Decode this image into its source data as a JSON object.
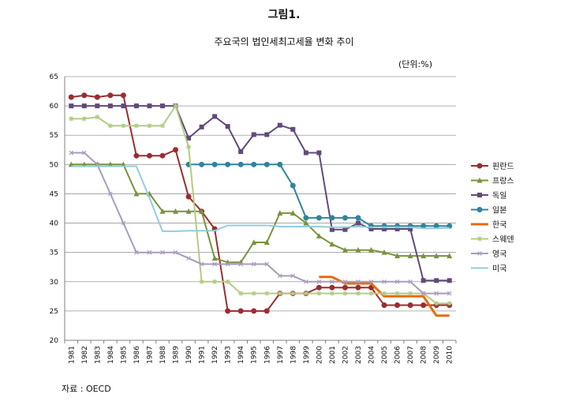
{
  "figure_label": "그림1.",
  "unit_label": "(단위:%)",
  "source_label": "자료 : OECD",
  "chart_data": {
    "type": "line",
    "title": "주요국의 법인세최고세율 변화 추이",
    "xlabel": "",
    "ylabel": "",
    "ylim": [
      20,
      65
    ],
    "yticks": [
      20,
      25,
      30,
      35,
      40,
      45,
      50,
      55,
      60,
      65
    ],
    "x": [
      "1981",
      "1982",
      "1983",
      "1984",
      "1985",
      "1986",
      "1987",
      "1988",
      "1989",
      "1990",
      "1991",
      "1992",
      "1993",
      "1994",
      "1995",
      "1996",
      "1997",
      "1998",
      "1999",
      "2000",
      "2001",
      "2002",
      "2003",
      "2004",
      "2005",
      "2006",
      "2007",
      "2008",
      "2009",
      "2010"
    ],
    "grid": "horizontal",
    "legend_position": "right",
    "series": [
      {
        "name": "핀란드",
        "color": "#9b2d30",
        "marker": "circle",
        "values": [
          61.5,
          61.8,
          61.5,
          61.8,
          61.8,
          51.5,
          51.5,
          51.5,
          52.5,
          44.5,
          42,
          39,
          25,
          25,
          25,
          25,
          28,
          28,
          28,
          29,
          29,
          29,
          29,
          29,
          26,
          26,
          26,
          26,
          26,
          26
        ]
      },
      {
        "name": "프랑스",
        "color": "#77933c",
        "marker": "triangle",
        "values": [
          50,
          50,
          50,
          50,
          50,
          45,
          45,
          42,
          42,
          42,
          42,
          34,
          33.3,
          33.3,
          36.7,
          36.7,
          41.7,
          41.7,
          40,
          37.8,
          36.4,
          35.4,
          35.4,
          35.4,
          35,
          34.4,
          34.4,
          34.4,
          34.4,
          34.4
        ]
      },
      {
        "name": "독일",
        "color": "#604a7b",
        "marker": "square",
        "values": [
          60,
          60,
          60,
          60,
          60,
          60,
          60,
          60,
          60,
          54.5,
          56.4,
          58.2,
          56.5,
          52.2,
          55.1,
          55.1,
          56.7,
          56,
          52,
          52,
          38.9,
          38.9,
          40,
          39,
          39,
          39,
          39,
          30.2,
          30.2,
          30.2
        ]
      },
      {
        "name": "일본",
        "color": "#31849b",
        "marker": "circle",
        "values": [
          null,
          null,
          null,
          null,
          null,
          null,
          null,
          null,
          null,
          50,
          50,
          50,
          50,
          50,
          50,
          50,
          50,
          46.4,
          40.9,
          40.9,
          40.9,
          40.9,
          40.9,
          39.5,
          39.5,
          39.5,
          39.5,
          39.5,
          39.5,
          39.5
        ]
      },
      {
        "name": "한국",
        "color": "#e46c0a",
        "marker": "none",
        "values": [
          null,
          null,
          null,
          null,
          null,
          null,
          null,
          null,
          null,
          null,
          null,
          null,
          null,
          null,
          null,
          null,
          null,
          null,
          null,
          30.8,
          30.8,
          29.7,
          29.7,
          29.7,
          27.5,
          27.5,
          27.5,
          27.5,
          24.2,
          24.2
        ]
      },
      {
        "name": "스웨덴",
        "color": "#b3cc82",
        "marker": "star",
        "values": [
          57.8,
          57.8,
          58.1,
          56.6,
          56.6,
          56.6,
          56.6,
          56.6,
          60,
          53,
          30,
          30,
          30,
          28,
          28,
          28,
          28,
          28,
          28,
          28,
          28,
          28,
          28,
          28,
          28,
          28,
          28,
          28,
          26.3,
          26.3
        ]
      },
      {
        "name": "영국",
        "color": "#a99bbd",
        "marker": "cross",
        "values": [
          52,
          52,
          50,
          45,
          40,
          35,
          35,
          35,
          35,
          34,
          33,
          33,
          33,
          33,
          33,
          33,
          31,
          31,
          30,
          30,
          30,
          30,
          30,
          30,
          30,
          30,
          30,
          28,
          28,
          28
        ]
      },
      {
        "name": "미국",
        "color": "#92cddc",
        "marker": "none",
        "values": [
          49.7,
          49.7,
          49.7,
          49.7,
          49.7,
          49.7,
          44.3,
          38.6,
          38.6,
          38.7,
          38.7,
          38.7,
          39.6,
          39.6,
          39.6,
          39.6,
          39.4,
          39.4,
          39.4,
          39.4,
          39.3,
          39.3,
          39.4,
          39.3,
          39.3,
          39.3,
          39.3,
          39.1,
          39.1,
          39.2
        ]
      }
    ]
  }
}
